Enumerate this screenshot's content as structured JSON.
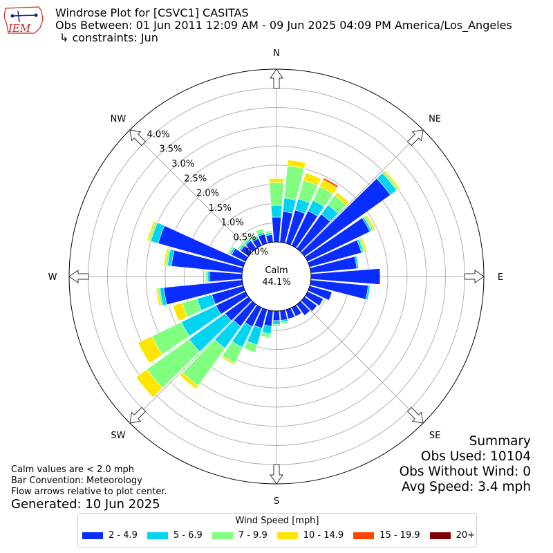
{
  "header": {
    "title": "Windrose Plot for [CSVC1] CASITAS",
    "period": "Obs Between: 01 Jun 2011 12:09 AM - 09 Jun 2025 04:09 PM America/Los_Angeles",
    "constraints": "↳ constraints: Jun"
  },
  "logo": {
    "text": "IEM",
    "color": "#cc2222"
  },
  "summary": {
    "heading": "Summary",
    "obs_used": "Obs Used: 10104",
    "obs_without_wind": "Obs Without Wind: 0",
    "avg_speed": "Avg Speed: 3.4 mph"
  },
  "notes": {
    "calm_note": "Calm values are < 2.0 mph",
    "bar_convention": "Bar Convention: Meteorology",
    "flow_arrows": "Flow arrows relative to plot center."
  },
  "generated": "Generated: 10 Jun 2025",
  "legend": {
    "title": "Wind Speed [mph]",
    "items": [
      {
        "label": "2 - 4.9",
        "color": "#0a2dff"
      },
      {
        "label": "5 - 6.9",
        "color": "#00d4f0"
      },
      {
        "label": "7 - 9.9",
        "color": "#80ff80"
      },
      {
        "label": "10 - 14.9",
        "color": "#ffe600"
      },
      {
        "label": "15 - 19.9",
        "color": "#ff4500"
      },
      {
        "label": "20+",
        "color": "#800000"
      }
    ]
  },
  "chart_data": {
    "type": "windrose",
    "calm": {
      "label": "Calm",
      "value": "44.1%"
    },
    "radial_ticks": [
      "0.0%",
      "0.5%",
      "1.0%",
      "1.5%",
      "2.0%",
      "2.5%",
      "3.0%",
      "3.5%",
      "4.0%"
    ],
    "radial_max": 4.5,
    "compass_labels": [
      "N",
      "NE",
      "E",
      "SE",
      "S",
      "SW",
      "W",
      "NW"
    ],
    "direction_deg": [
      0,
      10,
      20,
      30,
      40,
      50,
      60,
      70,
      80,
      90,
      100,
      110,
      120,
      130,
      140,
      150,
      160,
      170,
      180,
      190,
      200,
      210,
      220,
      230,
      240,
      250,
      260,
      270,
      280,
      290,
      300,
      310,
      320,
      330,
      340,
      350
    ],
    "series": [
      {
        "name": "2 - 4.9",
        "values": [
          0.65,
          0.8,
          0.9,
          1.0,
          1.1,
          2.75,
          1.8,
          1.4,
          1.2,
          1.8,
          1.5,
          0.6,
          0.45,
          0.4,
          0.35,
          0.25,
          0.25,
          0.25,
          0.25,
          0.4,
          0.5,
          0.55,
          0.7,
          0.75,
          0.85,
          0.85,
          2.05,
          0.85,
          1.85,
          2.3,
          0.4,
          0.25,
          0.25,
          0.2,
          0.25,
          0.2
        ]
      },
      {
        "name": "5 - 6.9",
        "values": [
          0.3,
          0.35,
          0.3,
          0.3,
          0.3,
          0.2,
          0.05,
          0.05,
          0.05,
          0.0,
          0.05,
          0.0,
          0.0,
          0.0,
          0.0,
          0.0,
          0.0,
          0.05,
          0.1,
          0.2,
          0.45,
          0.6,
          0.7,
          1.15,
          1.0,
          0.4,
          0.1,
          0.05,
          0.1,
          0.2,
          0.05,
          0.05,
          0.05,
          0.05,
          0.05,
          0.05
        ]
      },
      {
        "name": "7 - 9.9",
        "values": [
          0.6,
          0.85,
          0.5,
          0.4,
          0.3,
          0.05,
          0.05,
          0.05,
          0.0,
          0.0,
          0.0,
          0.0,
          0.0,
          0.0,
          0.0,
          0.0,
          0.0,
          0.05,
          0.05,
          0.1,
          0.2,
          0.45,
          1.2,
          1.35,
          0.85,
          0.4,
          0.05,
          0.05,
          0.05,
          0.05,
          0.05,
          0.05,
          0.05,
          0.05,
          0.1,
          0.05
        ]
      },
      {
        "name": "10 - 14.9",
        "values": [
          0.1,
          0.15,
          0.2,
          0.2,
          0.1,
          0.05,
          0.05,
          0.05,
          0.0,
          0.0,
          0.0,
          0.0,
          0.0,
          0.0,
          0.0,
          0.0,
          0.0,
          0.0,
          0.0,
          0.0,
          0.0,
          0.05,
          0.1,
          0.35,
          0.4,
          0.25,
          0.05,
          0.0,
          0.05,
          0.05,
          0.0,
          0.0,
          0.0,
          0.0,
          0.0,
          0.0
        ]
      },
      {
        "name": "15 - 19.9",
        "values": [
          0.0,
          0.0,
          0.0,
          0.05,
          0.0,
          0.0,
          0.0,
          0.0,
          0.0,
          0.0,
          0.0,
          0.0,
          0.0,
          0.0,
          0.0,
          0.0,
          0.0,
          0.0,
          0.0,
          0.0,
          0.0,
          0.0,
          0.0,
          0.0,
          0.0,
          0.0,
          0.0,
          0.0,
          0.0,
          0.0,
          0.0,
          0.0,
          0.0,
          0.0,
          0.0,
          0.0
        ]
      },
      {
        "name": "20+",
        "values": [
          0,
          0,
          0,
          0,
          0,
          0,
          0,
          0,
          0,
          0,
          0,
          0,
          0,
          0,
          0,
          0,
          0,
          0,
          0,
          0,
          0,
          0,
          0,
          0,
          0,
          0,
          0,
          0,
          0,
          0,
          0,
          0,
          0,
          0,
          0,
          0
        ]
      }
    ]
  }
}
